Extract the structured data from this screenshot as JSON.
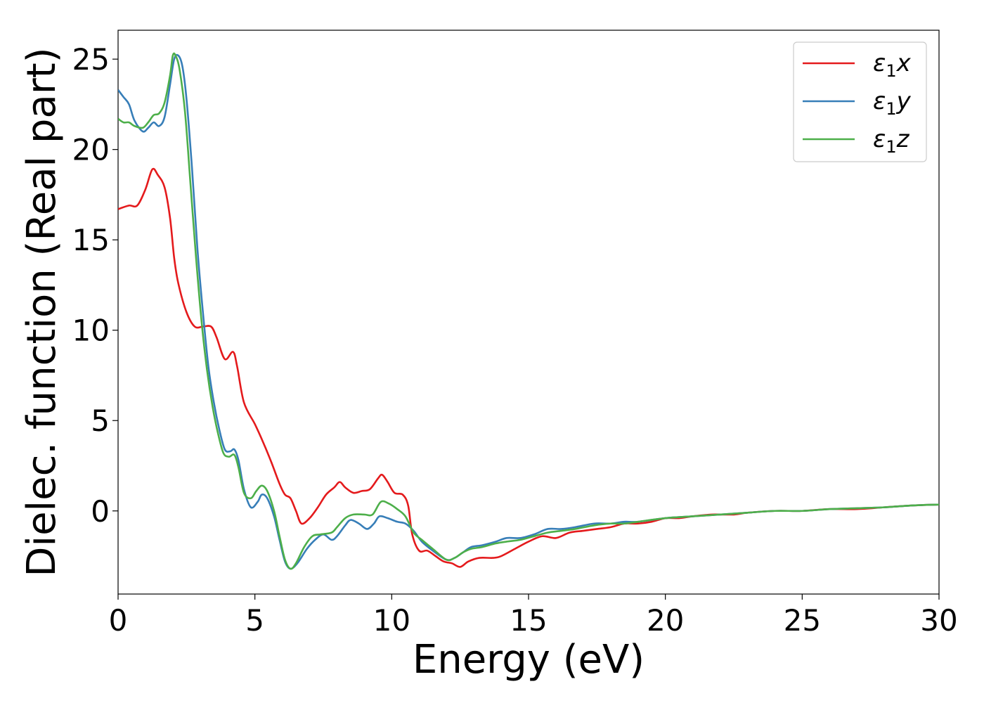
{
  "chart_data": {
    "type": "line",
    "title": "",
    "xlabel": "Energy (eV)",
    "ylabel": "Dielec. function (Real part)",
    "xlim": [
      0,
      30
    ],
    "ylim": [
      -4.6,
      26.6
    ],
    "xticks": [
      0,
      5,
      10,
      15,
      20,
      25,
      30
    ],
    "yticks": [
      0,
      5,
      10,
      15,
      20,
      25
    ],
    "grid": false,
    "legend_position": "top-right",
    "series": [
      {
        "name": "ε1x",
        "legend_symbol": "ε",
        "legend_sub": "1",
        "legend_var": "x",
        "color": "#e41a1c",
        "points": [
          [
            0,
            16.7
          ],
          [
            0.4,
            16.9
          ],
          [
            0.7,
            16.9
          ],
          [
            1.0,
            17.8
          ],
          [
            1.25,
            18.9
          ],
          [
            1.45,
            18.6
          ],
          [
            1.7,
            17.9
          ],
          [
            1.9,
            16.2
          ],
          [
            2.05,
            14.0
          ],
          [
            2.2,
            12.6
          ],
          [
            2.5,
            11.0
          ],
          [
            2.8,
            10.2
          ],
          [
            3.1,
            10.2
          ],
          [
            3.4,
            10.2
          ],
          [
            3.6,
            9.6
          ],
          [
            3.9,
            8.4
          ],
          [
            4.2,
            8.8
          ],
          [
            4.35,
            8.0
          ],
          [
            4.6,
            6.0
          ],
          [
            5.0,
            4.8
          ],
          [
            5.3,
            3.8
          ],
          [
            5.6,
            2.7
          ],
          [
            5.9,
            1.5
          ],
          [
            6.1,
            0.9
          ],
          [
            6.3,
            0.7
          ],
          [
            6.5,
            0.0
          ],
          [
            6.7,
            -0.7
          ],
          [
            7.0,
            -0.4
          ],
          [
            7.3,
            0.2
          ],
          [
            7.6,
            0.9
          ],
          [
            7.9,
            1.3
          ],
          [
            8.1,
            1.6
          ],
          [
            8.3,
            1.3
          ],
          [
            8.6,
            1.0
          ],
          [
            8.9,
            1.1
          ],
          [
            9.2,
            1.2
          ],
          [
            9.5,
            1.8
          ],
          [
            9.65,
            2.0
          ],
          [
            9.85,
            1.6
          ],
          [
            10.1,
            1.0
          ],
          [
            10.4,
            0.9
          ],
          [
            10.6,
            0.3
          ],
          [
            10.75,
            -1.3
          ],
          [
            11.0,
            -2.2
          ],
          [
            11.3,
            -2.2
          ],
          [
            11.6,
            -2.5
          ],
          [
            11.9,
            -2.8
          ],
          [
            12.2,
            -2.9
          ],
          [
            12.5,
            -3.1
          ],
          [
            12.8,
            -2.8
          ],
          [
            13.2,
            -2.6
          ],
          [
            13.7,
            -2.6
          ],
          [
            14.0,
            -2.5
          ],
          [
            14.5,
            -2.1
          ],
          [
            15.0,
            -1.7
          ],
          [
            15.5,
            -1.4
          ],
          [
            16.0,
            -1.5
          ],
          [
            16.5,
            -1.2
          ],
          [
            17.0,
            -1.1
          ],
          [
            17.5,
            -1.0
          ],
          [
            18.0,
            -0.9
          ],
          [
            18.5,
            -0.7
          ],
          [
            19.0,
            -0.7
          ],
          [
            19.5,
            -0.6
          ],
          [
            20.0,
            -0.4
          ],
          [
            20.5,
            -0.4
          ],
          [
            21.0,
            -0.3
          ],
          [
            21.7,
            -0.2
          ],
          [
            22.5,
            -0.2
          ],
          [
            23.0,
            -0.1
          ],
          [
            24.0,
            0.0
          ],
          [
            25.0,
            0.0
          ],
          [
            26.0,
            0.1
          ],
          [
            27.0,
            0.1
          ],
          [
            28.0,
            0.2
          ],
          [
            29.0,
            0.3
          ],
          [
            30.0,
            0.35
          ]
        ]
      },
      {
        "name": "ε1y",
        "legend_symbol": "ε",
        "legend_sub": "1",
        "legend_var": "y",
        "color": "#377eb8",
        "points": [
          [
            0,
            23.3
          ],
          [
            0.2,
            22.9
          ],
          [
            0.4,
            22.5
          ],
          [
            0.6,
            21.6
          ],
          [
            0.9,
            21.0
          ],
          [
            1.1,
            21.2
          ],
          [
            1.3,
            21.5
          ],
          [
            1.5,
            21.3
          ],
          [
            1.7,
            21.8
          ],
          [
            1.9,
            23.6
          ],
          [
            2.05,
            25.0
          ],
          [
            2.2,
            25.2
          ],
          [
            2.35,
            24.6
          ],
          [
            2.5,
            22.8
          ],
          [
            2.7,
            19.0
          ],
          [
            2.9,
            14.5
          ],
          [
            3.1,
            11.0
          ],
          [
            3.3,
            8.0
          ],
          [
            3.5,
            6.0
          ],
          [
            3.7,
            4.5
          ],
          [
            3.9,
            3.4
          ],
          [
            4.1,
            3.3
          ],
          [
            4.25,
            3.4
          ],
          [
            4.4,
            2.8
          ],
          [
            4.6,
            1.2
          ],
          [
            4.85,
            0.2
          ],
          [
            5.1,
            0.5
          ],
          [
            5.25,
            0.9
          ],
          [
            5.45,
            0.7
          ],
          [
            5.7,
            -0.3
          ],
          [
            5.9,
            -1.6
          ],
          [
            6.1,
            -2.8
          ],
          [
            6.3,
            -3.2
          ],
          [
            6.55,
            -2.9
          ],
          [
            6.9,
            -2.1
          ],
          [
            7.2,
            -1.6
          ],
          [
            7.5,
            -1.3
          ],
          [
            7.8,
            -1.6
          ],
          [
            8.0,
            -1.4
          ],
          [
            8.3,
            -0.8
          ],
          [
            8.5,
            -0.5
          ],
          [
            8.8,
            -0.7
          ],
          [
            9.1,
            -1.0
          ],
          [
            9.35,
            -0.7
          ],
          [
            9.55,
            -0.3
          ],
          [
            9.85,
            -0.4
          ],
          [
            10.2,
            -0.6
          ],
          [
            10.5,
            -0.7
          ],
          [
            10.8,
            -1.1
          ],
          [
            11.1,
            -1.7
          ],
          [
            11.5,
            -2.2
          ],
          [
            12.0,
            -2.7
          ],
          [
            12.3,
            -2.6
          ],
          [
            12.6,
            -2.3
          ],
          [
            12.9,
            -2.0
          ],
          [
            13.3,
            -1.9
          ],
          [
            13.8,
            -1.7
          ],
          [
            14.2,
            -1.5
          ],
          [
            14.7,
            -1.5
          ],
          [
            15.2,
            -1.3
          ],
          [
            15.7,
            -1.0
          ],
          [
            16.2,
            -1.0
          ],
          [
            16.7,
            -0.9
          ],
          [
            17.4,
            -0.7
          ],
          [
            18.0,
            -0.7
          ],
          [
            18.5,
            -0.6
          ],
          [
            19.0,
            -0.6
          ],
          [
            20.0,
            -0.4
          ],
          [
            21.0,
            -0.3
          ],
          [
            22.0,
            -0.2
          ],
          [
            23.0,
            -0.1
          ],
          [
            24.0,
            0.0
          ],
          [
            25.0,
            0.0
          ],
          [
            26.0,
            0.1
          ],
          [
            27.0,
            0.15
          ],
          [
            28.0,
            0.2
          ],
          [
            29.0,
            0.3
          ],
          [
            30.0,
            0.35
          ]
        ]
      },
      {
        "name": "ε1z",
        "legend_symbol": "ε",
        "legend_sub": "1",
        "legend_var": "z",
        "color": "#4daf4a",
        "points": [
          [
            0,
            21.7
          ],
          [
            0.2,
            21.5
          ],
          [
            0.4,
            21.5
          ],
          [
            0.6,
            21.3
          ],
          [
            0.9,
            21.2
          ],
          [
            1.1,
            21.5
          ],
          [
            1.3,
            21.9
          ],
          [
            1.5,
            22.0
          ],
          [
            1.7,
            22.6
          ],
          [
            1.9,
            24.1
          ],
          [
            2.0,
            25.2
          ],
          [
            2.1,
            25.2
          ],
          [
            2.25,
            24.4
          ],
          [
            2.45,
            22.0
          ],
          [
            2.65,
            18.0
          ],
          [
            2.85,
            14.0
          ],
          [
            3.05,
            10.5
          ],
          [
            3.25,
            7.8
          ],
          [
            3.45,
            5.8
          ],
          [
            3.65,
            4.3
          ],
          [
            3.85,
            3.2
          ],
          [
            4.05,
            3.0
          ],
          [
            4.25,
            3.1
          ],
          [
            4.4,
            2.4
          ],
          [
            4.6,
            1.0
          ],
          [
            4.85,
            0.7
          ],
          [
            5.05,
            1.1
          ],
          [
            5.25,
            1.4
          ],
          [
            5.45,
            1.1
          ],
          [
            5.7,
            0.0
          ],
          [
            5.9,
            -1.4
          ],
          [
            6.1,
            -2.7
          ],
          [
            6.3,
            -3.2
          ],
          [
            6.5,
            -2.9
          ],
          [
            6.8,
            -2.0
          ],
          [
            7.1,
            -1.4
          ],
          [
            7.4,
            -1.3
          ],
          [
            7.8,
            -1.2
          ],
          [
            8.0,
            -0.9
          ],
          [
            8.3,
            -0.4
          ],
          [
            8.6,
            -0.2
          ],
          [
            9.0,
            -0.2
          ],
          [
            9.3,
            -0.2
          ],
          [
            9.6,
            0.5
          ],
          [
            9.9,
            0.4
          ],
          [
            10.2,
            0.1
          ],
          [
            10.5,
            -0.3
          ],
          [
            10.8,
            -1.2
          ],
          [
            11.1,
            -1.6
          ],
          [
            11.5,
            -2.1
          ],
          [
            12.0,
            -2.7
          ],
          [
            12.3,
            -2.6
          ],
          [
            12.6,
            -2.3
          ],
          [
            12.9,
            -2.1
          ],
          [
            13.3,
            -2.0
          ],
          [
            13.8,
            -1.8
          ],
          [
            14.2,
            -1.7
          ],
          [
            14.7,
            -1.6
          ],
          [
            15.2,
            -1.4
          ],
          [
            15.7,
            -1.2
          ],
          [
            16.2,
            -1.1
          ],
          [
            16.7,
            -1.0
          ],
          [
            17.4,
            -0.8
          ],
          [
            18.0,
            -0.7
          ],
          [
            18.5,
            -0.7
          ],
          [
            19.0,
            -0.6
          ],
          [
            20.0,
            -0.4
          ],
          [
            21.0,
            -0.3
          ],
          [
            22.0,
            -0.2
          ],
          [
            23.0,
            -0.1
          ],
          [
            24.0,
            0.0
          ],
          [
            25.0,
            0.0
          ],
          [
            26.0,
            0.1
          ],
          [
            27.0,
            0.15
          ],
          [
            28.0,
            0.2
          ],
          [
            29.0,
            0.3
          ],
          [
            30.0,
            0.35
          ]
        ]
      }
    ]
  }
}
